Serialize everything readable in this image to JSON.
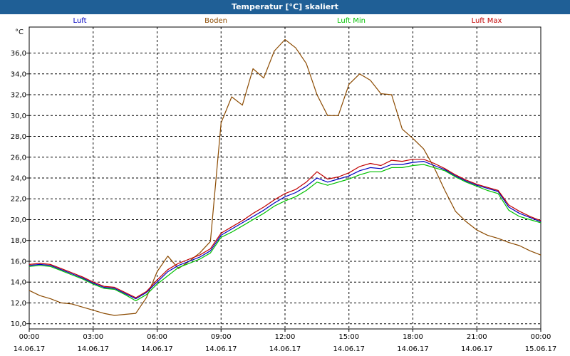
{
  "window": {
    "title": "Temperatur [°C] skaliert"
  },
  "chart_data": {
    "type": "line",
    "title": "Temperatur [°C] skaliert",
    "ylabel": "°C",
    "ylim": [
      9.5,
      38.5
    ],
    "xlim_hours": [
      0,
      24
    ],
    "grid": true,
    "y_ticks": [
      "10,0",
      "12,0",
      "14,0",
      "16,0",
      "18,0",
      "20,0",
      "22,0",
      "24,0",
      "26,0",
      "28,0",
      "30,0",
      "32,0",
      "34,0",
      "36,0"
    ],
    "x_ticks": [
      {
        "time": "00:00",
        "date": "14.06.17"
      },
      {
        "time": "03:00",
        "date": "14.06.17"
      },
      {
        "time": "06:00",
        "date": "14.06.17"
      },
      {
        "time": "09:00",
        "date": "14.06.17"
      },
      {
        "time": "12:00",
        "date": "14.06.17"
      },
      {
        "time": "15:00",
        "date": "14.06.17"
      },
      {
        "time": "18:00",
        "date": "14.06.17"
      },
      {
        "time": "21:00",
        "date": "14.06.17"
      },
      {
        "time": "00:00",
        "date": "15.06.17"
      }
    ],
    "series": [
      {
        "name": "Luft",
        "color": "#0000c0",
        "x": [
          0,
          0.5,
          1,
          1.5,
          2,
          2.5,
          3,
          3.5,
          4,
          4.5,
          5,
          5.5,
          6,
          6.5,
          7,
          7.5,
          8,
          8.5,
          9,
          9.5,
          10,
          10.5,
          11,
          11.5,
          12,
          12.5,
          13,
          13.5,
          14,
          14.5,
          15,
          15.5,
          16,
          16.5,
          17,
          17.5,
          18,
          18.5,
          19,
          19.5,
          20,
          20.5,
          21,
          21.5,
          22,
          22.5,
          23,
          23.5,
          24
        ],
        "y": [
          15.6,
          15.7,
          15.6,
          15.2,
          14.8,
          14.4,
          13.9,
          13.5,
          13.4,
          12.9,
          12.4,
          13.0,
          14.0,
          15.0,
          15.6,
          16.0,
          16.4,
          17.0,
          18.5,
          19.1,
          19.7,
          20.3,
          20.9,
          21.6,
          22.2,
          22.6,
          23.2,
          24.0,
          23.6,
          23.9,
          24.2,
          24.7,
          25.0,
          24.9,
          25.3,
          25.3,
          25.5,
          25.6,
          25.2,
          24.8,
          24.2,
          23.7,
          23.3,
          23.0,
          22.7,
          21.2,
          20.6,
          20.2,
          19.8
        ]
      },
      {
        "name": "Boden",
        "color": "#8b4a00",
        "x": [
          0,
          0.5,
          1,
          1.5,
          2,
          2.5,
          3,
          3.5,
          4,
          4.5,
          5,
          5.5,
          6,
          6.5,
          7,
          7.5,
          8,
          8.5,
          9,
          9.5,
          10,
          10.5,
          11,
          11.5,
          12,
          12.5,
          13,
          13.5,
          14,
          14.5,
          15,
          15.5,
          16,
          16.5,
          17,
          17.5,
          18,
          18.5,
          19,
          19.5,
          20,
          20.5,
          21,
          21.5,
          22,
          22.5,
          23,
          23.5,
          24
        ],
        "y": [
          13.2,
          12.7,
          12.4,
          12.0,
          11.9,
          11.6,
          11.3,
          11.0,
          10.8,
          10.9,
          11.0,
          12.5,
          15.0,
          16.5,
          15.3,
          16.0,
          16.8,
          17.9,
          29.3,
          31.8,
          31.0,
          34.5,
          33.6,
          36.2,
          37.3,
          36.5,
          35.0,
          32.0,
          30.0,
          30.0,
          33.0,
          34.0,
          33.4,
          32.1,
          32.0,
          28.7,
          27.8,
          26.8,
          25.0,
          22.8,
          20.8,
          19.8,
          19.0,
          18.5,
          18.2,
          17.8,
          17.5,
          17.0,
          16.6
        ]
      },
      {
        "name": "Luft Min",
        "color": "#00c000",
        "x": [
          0,
          0.5,
          1,
          1.5,
          2,
          2.5,
          3,
          3.5,
          4,
          4.5,
          5,
          5.5,
          6,
          6.5,
          7,
          7.5,
          8,
          8.5,
          9,
          9.5,
          10,
          10.5,
          11,
          11.5,
          12,
          12.5,
          13,
          13.5,
          14,
          14.5,
          15,
          15.5,
          16,
          16.5,
          17,
          17.5,
          18,
          18.5,
          19,
          19.5,
          20,
          20.5,
          21,
          21.5,
          22,
          22.5,
          23,
          23.5,
          24
        ],
        "y": [
          15.5,
          15.6,
          15.5,
          15.1,
          14.7,
          14.3,
          13.8,
          13.4,
          13.3,
          12.8,
          12.2,
          12.8,
          13.8,
          14.6,
          15.4,
          15.8,
          16.2,
          16.8,
          18.3,
          18.8,
          19.4,
          20.0,
          20.6,
          21.3,
          21.8,
          22.2,
          22.8,
          23.6,
          23.3,
          23.6,
          23.9,
          24.3,
          24.6,
          24.6,
          25.0,
          25.0,
          25.2,
          25.3,
          25.0,
          24.7,
          24.1,
          23.6,
          23.2,
          22.8,
          22.5,
          20.9,
          20.3,
          20.0,
          19.7
        ]
      },
      {
        "name": "Luft Max",
        "color": "#c00000",
        "x": [
          0,
          0.5,
          1,
          1.5,
          2,
          2.5,
          3,
          3.5,
          4,
          4.5,
          5,
          5.5,
          6,
          6.5,
          7,
          7.5,
          8,
          8.5,
          9,
          9.5,
          10,
          10.5,
          11,
          11.5,
          12,
          12.5,
          13,
          13.5,
          14,
          14.5,
          15,
          15.5,
          16,
          16.5,
          17,
          17.5,
          18,
          18.5,
          19,
          19.5,
          20,
          20.5,
          21,
          21.5,
          22,
          22.5,
          23,
          23.5,
          24
        ],
        "y": [
          15.7,
          15.8,
          15.7,
          15.3,
          14.9,
          14.5,
          14.0,
          13.6,
          13.5,
          13.0,
          12.5,
          13.1,
          14.2,
          15.2,
          15.8,
          16.2,
          16.6,
          17.2,
          18.7,
          19.3,
          19.9,
          20.6,
          21.2,
          21.9,
          22.5,
          22.9,
          23.6,
          24.6,
          23.9,
          24.1,
          24.5,
          25.1,
          25.4,
          25.2,
          25.7,
          25.6,
          25.8,
          25.8,
          25.4,
          24.9,
          24.3,
          23.8,
          23.4,
          23.1,
          22.8,
          21.4,
          20.8,
          20.3,
          19.9
        ]
      }
    ]
  }
}
